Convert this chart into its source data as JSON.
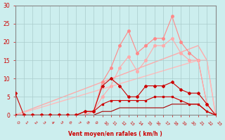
{
  "xlabel": "Vent moyen/en rafales ( km/h )",
  "xlabel_color": "#cc0000",
  "bg_color": "#cceeee",
  "grid_color": "#aacccc",
  "axis_color": "#888888",
  "tick_color": "#cc0000",
  "xlim": [
    0,
    23
  ],
  "ylim": [
    0,
    30
  ],
  "yticks": [
    0,
    5,
    10,
    15,
    20,
    25,
    30
  ],
  "xticks": [
    0,
    1,
    2,
    3,
    4,
    5,
    6,
    7,
    8,
    9,
    10,
    11,
    12,
    13,
    14,
    15,
    16,
    17,
    18,
    19,
    20,
    21,
    22,
    23
  ],
  "line_straight1": {
    "x": [
      0,
      21,
      22,
      23
    ],
    "y": [
      0,
      19,
      15,
      0
    ],
    "color": "#ffaaaa",
    "lw": 1.0
  },
  "line_straight2": {
    "x": [
      0,
      21,
      22,
      23
    ],
    "y": [
      0,
      15,
      15,
      0
    ],
    "color": "#ffbbbb",
    "lw": 1.0
  },
  "series_pink_rafales": {
    "x": [
      0,
      1,
      2,
      3,
      4,
      5,
      6,
      7,
      8,
      9,
      10,
      11,
      12,
      13,
      14,
      15,
      16,
      17,
      18,
      19,
      20,
      21,
      22,
      23
    ],
    "y": [
      0,
      0,
      0,
      0,
      0,
      0,
      0,
      0,
      0,
      1,
      9,
      13,
      19,
      23,
      17,
      19,
      21,
      21,
      27,
      20,
      17,
      15,
      3,
      0
    ],
    "color": "#ff8888",
    "lw": 0.8,
    "marker": "o",
    "ms": 2.5
  },
  "series_pink_moyen": {
    "x": [
      0,
      1,
      2,
      3,
      4,
      5,
      6,
      7,
      8,
      9,
      10,
      11,
      12,
      13,
      14,
      15,
      16,
      17,
      18,
      19,
      20,
      21,
      22,
      23
    ],
    "y": [
      0,
      0,
      0,
      0,
      0,
      0,
      0,
      0,
      0,
      1,
      5,
      8,
      13,
      16,
      12,
      15,
      19,
      19,
      21,
      17,
      15,
      15,
      3,
      0
    ],
    "color": "#ffaaaa",
    "lw": 0.8,
    "marker": "o",
    "ms": 2.5
  },
  "series_dark_gusts": {
    "x": [
      0,
      1,
      2,
      3,
      4,
      5,
      6,
      7,
      8,
      9,
      10,
      11,
      12,
      13,
      14,
      15,
      16,
      17,
      18,
      19,
      20,
      21,
      22,
      23
    ],
    "y": [
      6,
      0,
      0,
      0,
      0,
      0,
      0,
      0,
      1,
      1,
      8,
      10,
      8,
      5,
      5,
      8,
      8,
      8,
      9,
      7,
      6,
      6,
      3,
      0
    ],
    "color": "#cc0000",
    "lw": 0.8,
    "marker": "D",
    "ms": 2.0
  },
  "series_dark_mean": {
    "x": [
      0,
      1,
      2,
      3,
      4,
      5,
      6,
      7,
      8,
      9,
      10,
      11,
      12,
      13,
      14,
      15,
      16,
      17,
      18,
      19,
      20,
      21,
      22,
      23
    ],
    "y": [
      0,
      0,
      0,
      0,
      0,
      0,
      0,
      0,
      1,
      1,
      3,
      4,
      4,
      4,
      4,
      4,
      5,
      5,
      5,
      4,
      3,
      3,
      1,
      0
    ],
    "color": "#cc0000",
    "lw": 0.8,
    "marker": "s",
    "ms": 2.0
  },
  "series_dark_freq": {
    "x": [
      0,
      1,
      2,
      3,
      4,
      5,
      6,
      7,
      8,
      9,
      10,
      11,
      12,
      13,
      14,
      15,
      16,
      17,
      18,
      19,
      20,
      21,
      22,
      23
    ],
    "y": [
      0,
      0,
      0,
      0,
      0,
      0,
      0,
      0,
      0,
      0,
      1,
      1,
      2,
      2,
      2,
      2,
      2,
      2,
      3,
      3,
      3,
      3,
      1,
      0
    ],
    "color": "#aa0000",
    "lw": 0.8,
    "marker": null,
    "ms": 0
  }
}
